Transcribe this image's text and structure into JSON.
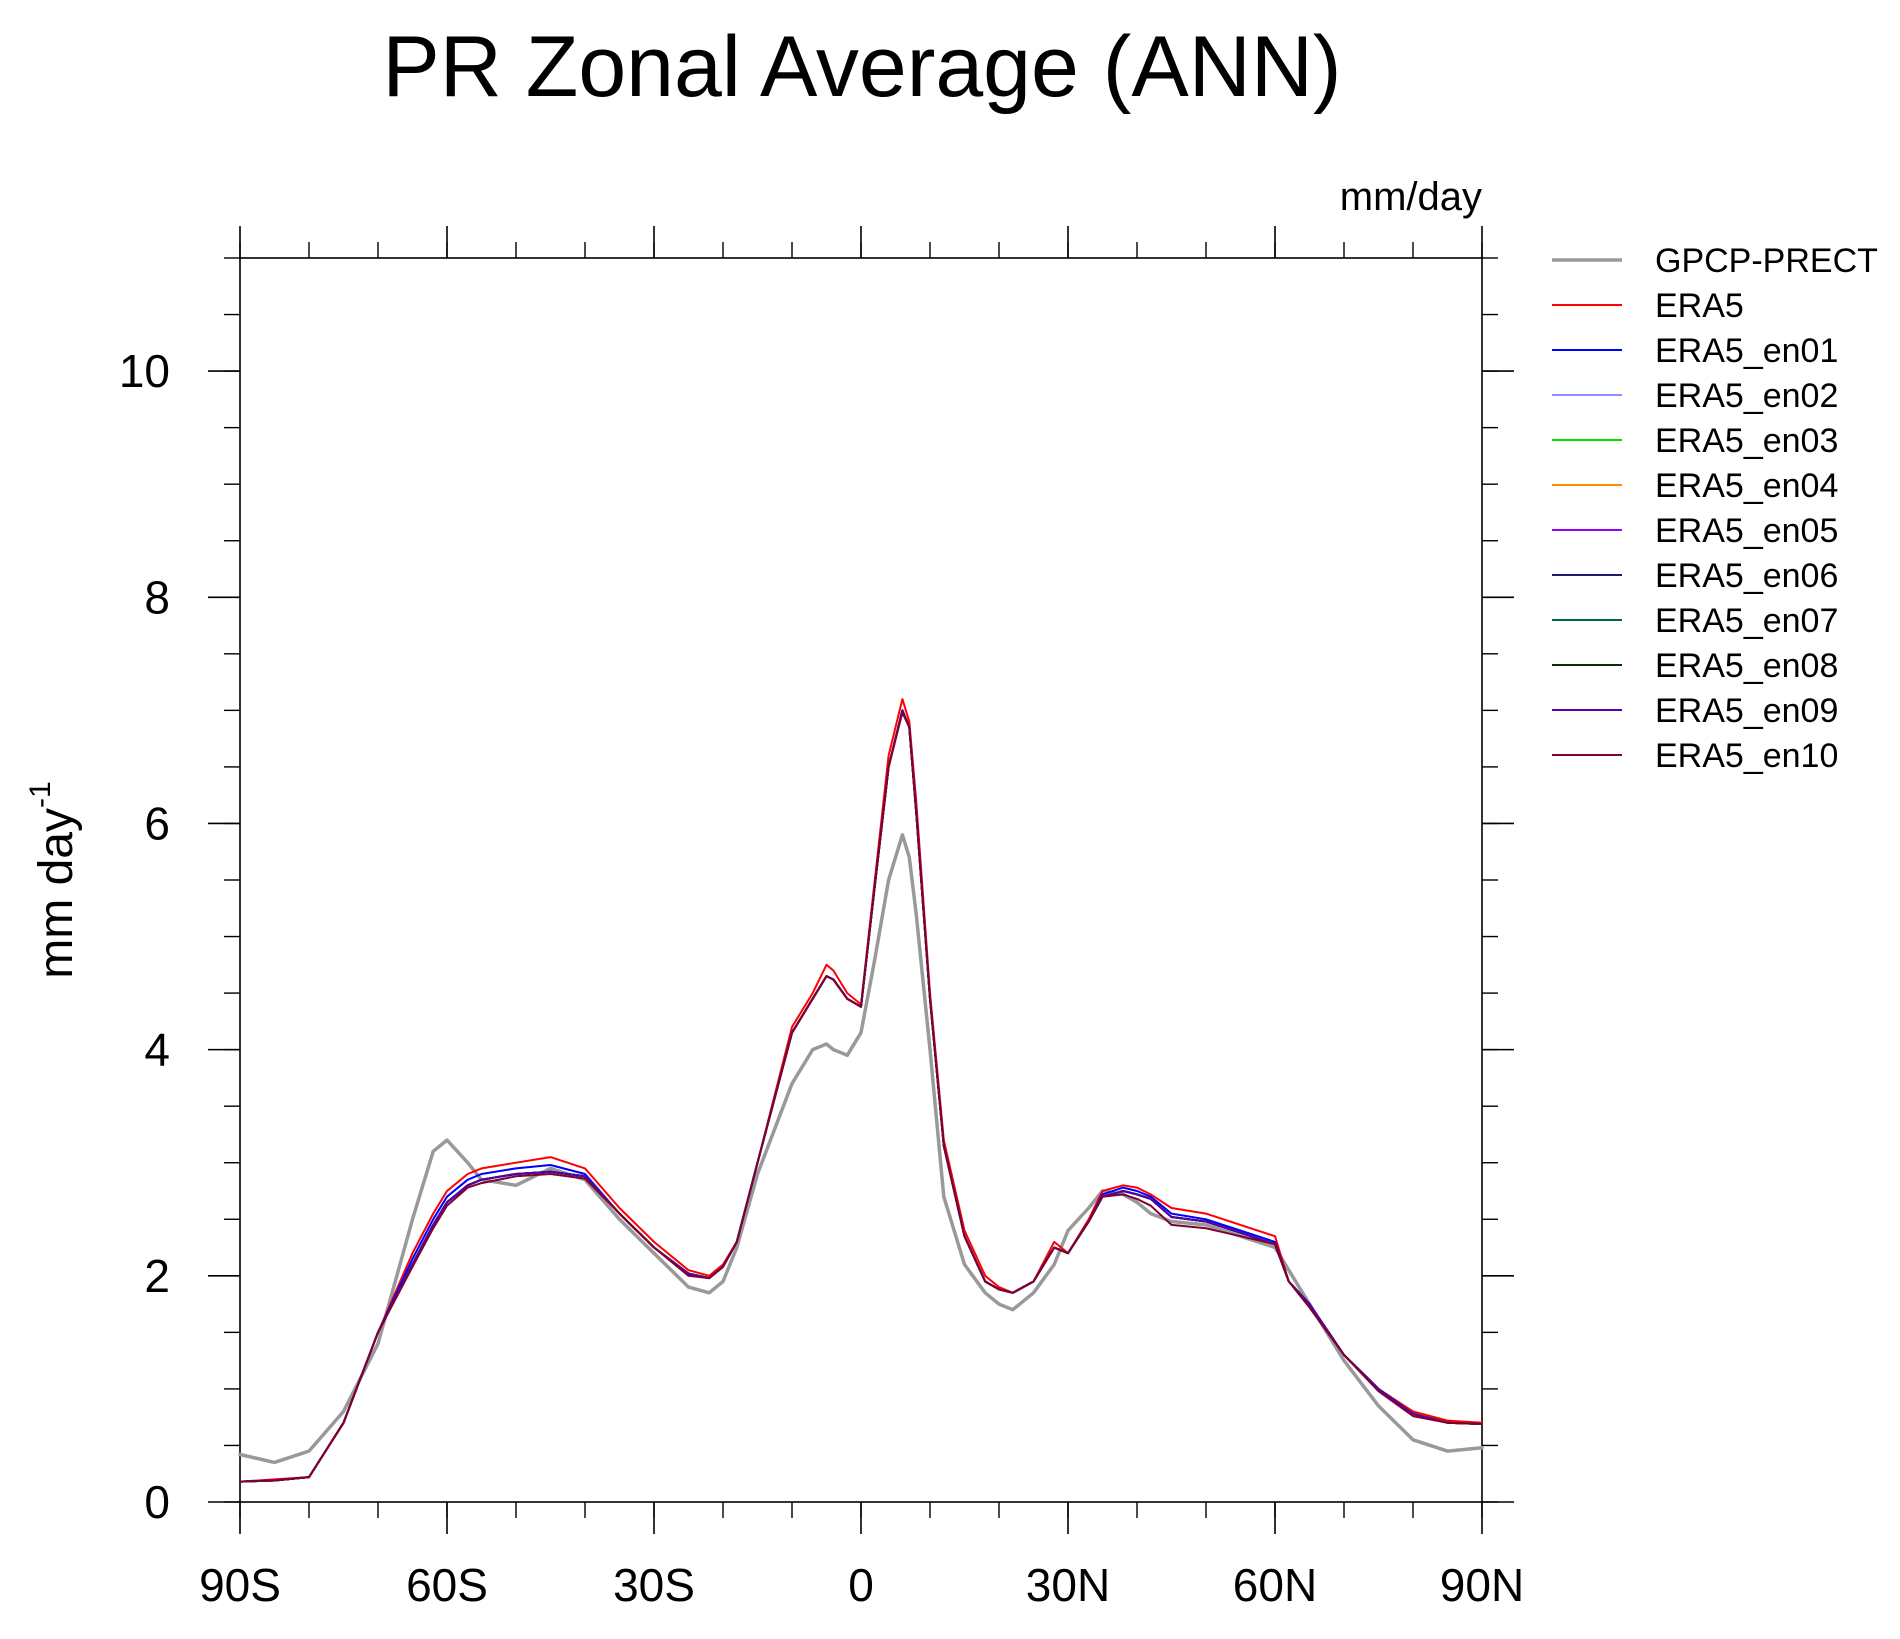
{
  "chart_data": {
    "type": "line",
    "title": "PR Zonal Average (ANN)",
    "units_label": "mm/day",
    "xlabel": "",
    "ylabel": "mm day",
    "ylabel_superscript": "-1",
    "xlim": [
      -90,
      90
    ],
    "ylim": [
      0,
      11
    ],
    "x_ticks": [
      {
        "value": -90,
        "label": "90S"
      },
      {
        "value": -60,
        "label": "60S"
      },
      {
        "value": -30,
        "label": "30S"
      },
      {
        "value": 0,
        "label": "0"
      },
      {
        "value": 30,
        "label": "30N"
      },
      {
        "value": 60,
        "label": "60N"
      },
      {
        "value": 90,
        "label": "90N"
      }
    ],
    "y_ticks": [
      {
        "value": 0,
        "label": "0"
      },
      {
        "value": 2,
        "label": "2"
      },
      {
        "value": 4,
        "label": "4"
      },
      {
        "value": 6,
        "label": "6"
      },
      {
        "value": 8,
        "label": "8"
      },
      {
        "value": 10,
        "label": "10"
      }
    ],
    "x": [
      -90,
      -85,
      -80,
      -75,
      -70,
      -65,
      -62,
      -60,
      -57,
      -55,
      -50,
      -45,
      -40,
      -35,
      -30,
      -25,
      -22,
      -20,
      -18,
      -15,
      -10,
      -7,
      -5,
      -4,
      -2,
      0,
      2,
      4,
      6,
      7,
      8,
      10,
      12,
      15,
      18,
      20,
      22,
      25,
      28,
      30,
      33,
      35,
      38,
      40,
      42,
      45,
      50,
      55,
      60,
      62,
      65,
      70,
      75,
      80,
      85,
      90
    ],
    "series": [
      {
        "name": "GPCP-PRECT",
        "color": "#999999",
        "width": 3.5,
        "values": [
          0.42,
          0.35,
          0.45,
          0.8,
          1.4,
          2.5,
          3.1,
          3.2,
          3.0,
          2.85,
          2.8,
          2.95,
          2.85,
          2.5,
          2.2,
          1.9,
          1.85,
          1.95,
          2.25,
          2.9,
          3.7,
          4.0,
          4.05,
          4.0,
          3.95,
          4.15,
          4.8,
          5.5,
          5.9,
          5.7,
          5.2,
          4.0,
          2.7,
          2.1,
          1.85,
          1.75,
          1.7,
          1.85,
          2.1,
          2.4,
          2.6,
          2.75,
          2.72,
          2.65,
          2.55,
          2.48,
          2.45,
          2.35,
          2.25,
          2.05,
          1.75,
          1.25,
          0.85,
          0.55,
          0.45,
          0.48
        ]
      },
      {
        "name": "ERA5",
        "color": "#ff0000",
        "width": 2,
        "values": [
          0.18,
          0.2,
          0.22,
          0.7,
          1.5,
          2.2,
          2.55,
          2.75,
          2.9,
          2.95,
          3.0,
          3.05,
          2.95,
          2.6,
          2.3,
          2.05,
          2.0,
          2.1,
          2.3,
          3.0,
          4.2,
          4.5,
          4.75,
          4.7,
          4.5,
          4.4,
          5.5,
          6.6,
          7.1,
          6.9,
          6.2,
          4.5,
          3.2,
          2.4,
          2.0,
          1.9,
          1.85,
          1.95,
          2.3,
          2.2,
          2.5,
          2.75,
          2.8,
          2.78,
          2.72,
          2.6,
          2.55,
          2.45,
          2.35,
          1.95,
          1.75,
          1.3,
          1.0,
          0.8,
          0.72,
          0.7
        ]
      },
      {
        "name": "ERA5_en01",
        "color": "#0000ff",
        "width": 2,
        "values": [
          0.18,
          0.19,
          0.22,
          0.7,
          1.5,
          2.15,
          2.5,
          2.7,
          2.85,
          2.9,
          2.95,
          2.98,
          2.9,
          2.55,
          2.25,
          2.02,
          1.98,
          2.08,
          2.3,
          3.0,
          4.15,
          4.45,
          4.65,
          4.62,
          4.45,
          4.38,
          5.45,
          6.5,
          7.0,
          6.85,
          6.1,
          4.45,
          3.15,
          2.35,
          1.95,
          1.88,
          1.85,
          1.95,
          2.25,
          2.2,
          2.48,
          2.72,
          2.78,
          2.75,
          2.7,
          2.55,
          2.5,
          2.4,
          2.3,
          1.95,
          1.75,
          1.3,
          1.0,
          0.78,
          0.7,
          0.69
        ]
      },
      {
        "name": "ERA5_en02",
        "color": "#8f8fff",
        "width": 2,
        "values": [
          0.18,
          0.19,
          0.22,
          0.7,
          1.5,
          2.1,
          2.45,
          2.65,
          2.8,
          2.85,
          2.9,
          2.92,
          2.88,
          2.55,
          2.25,
          2.02,
          1.98,
          2.08,
          2.3,
          3.0,
          4.15,
          4.45,
          4.65,
          4.62,
          4.45,
          4.38,
          5.45,
          6.5,
          7.0,
          6.85,
          6.1,
          4.45,
          3.15,
          2.35,
          1.95,
          1.88,
          1.85,
          1.95,
          2.25,
          2.2,
          2.48,
          2.7,
          2.75,
          2.72,
          2.68,
          2.52,
          2.48,
          2.38,
          2.28,
          1.95,
          1.75,
          1.3,
          1.0,
          0.78,
          0.7,
          0.69
        ]
      },
      {
        "name": "ERA5_en03",
        "color": "#00dd00",
        "width": 2,
        "values": [
          0.18,
          0.19,
          0.22,
          0.7,
          1.5,
          2.1,
          2.45,
          2.65,
          2.8,
          2.85,
          2.9,
          2.92,
          2.88,
          2.55,
          2.25,
          2.02,
          1.98,
          2.08,
          2.3,
          3.0,
          4.15,
          4.45,
          4.65,
          4.62,
          4.45,
          4.38,
          5.45,
          6.5,
          7.0,
          6.85,
          6.1,
          4.45,
          3.15,
          2.35,
          1.95,
          1.88,
          1.85,
          1.95,
          2.25,
          2.2,
          2.48,
          2.7,
          2.75,
          2.72,
          2.68,
          2.52,
          2.48,
          2.38,
          2.28,
          1.95,
          1.75,
          1.3,
          1.0,
          0.78,
          0.7,
          0.69
        ]
      },
      {
        "name": "ERA5_en04",
        "color": "#ff8c00",
        "width": 2,
        "values": [
          0.18,
          0.19,
          0.22,
          0.7,
          1.5,
          2.1,
          2.45,
          2.65,
          2.8,
          2.85,
          2.9,
          2.92,
          2.88,
          2.55,
          2.25,
          2.02,
          1.98,
          2.08,
          2.3,
          3.0,
          4.15,
          4.45,
          4.65,
          4.62,
          4.45,
          4.38,
          5.45,
          6.5,
          7.0,
          6.85,
          6.1,
          4.45,
          3.15,
          2.35,
          1.95,
          1.88,
          1.85,
          1.95,
          2.25,
          2.2,
          2.48,
          2.7,
          2.75,
          2.72,
          2.68,
          2.52,
          2.48,
          2.38,
          2.28,
          1.95,
          1.75,
          1.3,
          1.0,
          0.78,
          0.7,
          0.69
        ]
      },
      {
        "name": "ERA5_en05",
        "color": "#9400ff",
        "width": 2,
        "values": [
          0.18,
          0.19,
          0.22,
          0.7,
          1.5,
          2.1,
          2.45,
          2.65,
          2.8,
          2.85,
          2.9,
          2.92,
          2.88,
          2.55,
          2.25,
          2.02,
          1.98,
          2.08,
          2.3,
          3.0,
          4.15,
          4.45,
          4.65,
          4.62,
          4.45,
          4.38,
          5.45,
          6.5,
          7.0,
          6.85,
          6.1,
          4.45,
          3.15,
          2.35,
          1.95,
          1.88,
          1.85,
          1.95,
          2.25,
          2.2,
          2.48,
          2.7,
          2.75,
          2.72,
          2.68,
          2.52,
          2.48,
          2.38,
          2.28,
          1.95,
          1.75,
          1.3,
          1.0,
          0.78,
          0.7,
          0.69
        ]
      },
      {
        "name": "ERA5_en06",
        "color": "#1a1a70",
        "width": 2,
        "values": [
          0.18,
          0.19,
          0.22,
          0.7,
          1.5,
          2.1,
          2.45,
          2.65,
          2.8,
          2.85,
          2.9,
          2.92,
          2.88,
          2.55,
          2.25,
          2.02,
          1.98,
          2.08,
          2.3,
          3.0,
          4.15,
          4.45,
          4.65,
          4.62,
          4.45,
          4.38,
          5.45,
          6.5,
          7.0,
          6.85,
          6.1,
          4.45,
          3.15,
          2.35,
          1.95,
          1.88,
          1.85,
          1.95,
          2.25,
          2.2,
          2.48,
          2.7,
          2.75,
          2.72,
          2.68,
          2.52,
          2.48,
          2.38,
          2.28,
          1.95,
          1.75,
          1.3,
          1.0,
          0.78,
          0.7,
          0.69
        ]
      },
      {
        "name": "ERA5_en07",
        "color": "#006644",
        "width": 2,
        "values": [
          0.18,
          0.19,
          0.22,
          0.7,
          1.5,
          2.1,
          2.45,
          2.65,
          2.8,
          2.85,
          2.9,
          2.92,
          2.88,
          2.55,
          2.25,
          2.02,
          1.98,
          2.08,
          2.3,
          3.0,
          4.15,
          4.45,
          4.65,
          4.62,
          4.45,
          4.38,
          5.45,
          6.5,
          7.0,
          6.85,
          6.1,
          4.45,
          3.15,
          2.35,
          1.95,
          1.88,
          1.85,
          1.95,
          2.25,
          2.2,
          2.48,
          2.7,
          2.75,
          2.72,
          2.68,
          2.52,
          2.48,
          2.38,
          2.28,
          1.95,
          1.75,
          1.3,
          1.0,
          0.78,
          0.7,
          0.69
        ]
      },
      {
        "name": "ERA5_en08",
        "color": "#003300",
        "width": 2,
        "values": [
          0.18,
          0.19,
          0.22,
          0.7,
          1.5,
          2.1,
          2.45,
          2.65,
          2.8,
          2.85,
          2.9,
          2.92,
          2.88,
          2.55,
          2.25,
          2.02,
          1.98,
          2.08,
          2.3,
          3.0,
          4.15,
          4.45,
          4.65,
          4.62,
          4.45,
          4.38,
          5.45,
          6.5,
          7.0,
          6.85,
          6.1,
          4.45,
          3.15,
          2.35,
          1.95,
          1.88,
          1.85,
          1.95,
          2.25,
          2.2,
          2.48,
          2.7,
          2.75,
          2.72,
          2.68,
          2.52,
          2.48,
          2.38,
          2.28,
          1.95,
          1.75,
          1.3,
          1.0,
          0.78,
          0.7,
          0.69
        ]
      },
      {
        "name": "ERA5_en09",
        "color": "#5500aa",
        "width": 2,
        "values": [
          0.18,
          0.19,
          0.22,
          0.7,
          1.5,
          2.1,
          2.45,
          2.65,
          2.8,
          2.85,
          2.9,
          2.92,
          2.88,
          2.55,
          2.25,
          2.02,
          1.98,
          2.08,
          2.3,
          3.0,
          4.15,
          4.45,
          4.65,
          4.62,
          4.45,
          4.38,
          5.45,
          6.5,
          7.0,
          6.85,
          6.1,
          4.45,
          3.15,
          2.35,
          1.95,
          1.88,
          1.85,
          1.95,
          2.25,
          2.2,
          2.48,
          2.7,
          2.75,
          2.72,
          2.68,
          2.52,
          2.48,
          2.38,
          2.28,
          1.95,
          1.75,
          1.3,
          1.0,
          0.78,
          0.7,
          0.69
        ]
      },
      {
        "name": "ERA5_en10",
        "color": "#800033",
        "width": 2,
        "values": [
          0.18,
          0.19,
          0.22,
          0.7,
          1.5,
          2.08,
          2.42,
          2.62,
          2.78,
          2.82,
          2.88,
          2.9,
          2.86,
          2.55,
          2.25,
          2.0,
          1.98,
          2.08,
          2.3,
          3.0,
          4.15,
          4.45,
          4.65,
          4.62,
          4.45,
          4.38,
          5.45,
          6.5,
          6.98,
          6.85,
          6.1,
          4.45,
          3.15,
          2.35,
          1.95,
          1.88,
          1.85,
          1.95,
          2.25,
          2.2,
          2.48,
          2.7,
          2.72,
          2.68,
          2.62,
          2.45,
          2.42,
          2.35,
          2.28,
          1.95,
          1.72,
          1.3,
          0.98,
          0.76,
          0.7,
          0.69
        ]
      }
    ]
  }
}
